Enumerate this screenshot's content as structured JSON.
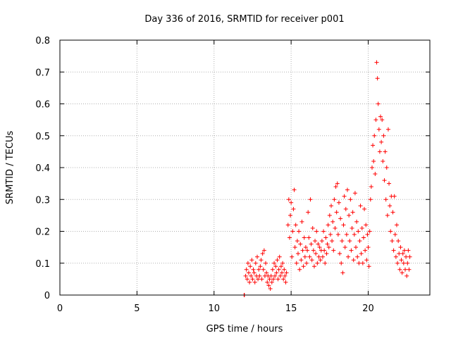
{
  "chart_data": {
    "type": "scatter",
    "title": "Day 336 of 2016, SRMTID for receiver p001",
    "xlabel": "GPS time / hours",
    "ylabel": "SRMTID / TECUs",
    "xlim": [
      0,
      24
    ],
    "ylim": [
      0,
      0.8
    ],
    "xticks": [
      0,
      5,
      10,
      15,
      20
    ],
    "xtick_labels": [
      "0",
      "5",
      "10",
      "15",
      "20"
    ],
    "yticks": [
      0,
      0.1,
      0.2,
      0.3,
      0.4,
      0.5,
      0.6,
      0.7,
      0.8
    ],
    "ytick_labels": [
      "0",
      "0.1",
      "0.2",
      "0.3",
      "0.4",
      "0.5",
      "0.6",
      "0.7",
      "0.8"
    ],
    "grid": true,
    "marker": "plus",
    "color": "#ff0000",
    "series": [
      {
        "name": "SRMTID",
        "points": [
          [
            11.95,
            0.0
          ],
          [
            11.97,
            0.0
          ],
          [
            12.05,
            0.06
          ],
          [
            12.1,
            0.08
          ],
          [
            12.15,
            0.05
          ],
          [
            12.2,
            0.1
          ],
          [
            12.25,
            0.07
          ],
          [
            12.3,
            0.04
          ],
          [
            12.35,
            0.09
          ],
          [
            12.4,
            0.06
          ],
          [
            12.45,
            0.11
          ],
          [
            12.5,
            0.05
          ],
          [
            12.55,
            0.08
          ],
          [
            12.6,
            0.07
          ],
          [
            12.65,
            0.04
          ],
          [
            12.7,
            0.1
          ],
          [
            12.75,
            0.06
          ],
          [
            12.8,
            0.12
          ],
          [
            12.85,
            0.05
          ],
          [
            12.9,
            0.08
          ],
          [
            12.95,
            0.06
          ],
          [
            13.0,
            0.09
          ],
          [
            13.05,
            0.11
          ],
          [
            13.1,
            0.05
          ],
          [
            13.15,
            0.13
          ],
          [
            13.2,
            0.08
          ],
          [
            13.25,
            0.14
          ],
          [
            13.3,
            0.06
          ],
          [
            13.35,
            0.1
          ],
          [
            13.4,
            0.07
          ],
          [
            13.45,
            0.04
          ],
          [
            13.5,
            0.06
          ],
          [
            13.55,
            0.03
          ],
          [
            13.6,
            0.05
          ],
          [
            13.65,
            0.02
          ],
          [
            13.7,
            0.06
          ],
          [
            13.75,
            0.04
          ],
          [
            13.8,
            0.08
          ],
          [
            13.85,
            0.05
          ],
          [
            13.9,
            0.1
          ],
          [
            13.95,
            0.06
          ],
          [
            14.0,
            0.09
          ],
          [
            14.05,
            0.07
          ],
          [
            14.1,
            0.11
          ],
          [
            14.15,
            0.05
          ],
          [
            14.2,
            0.08
          ],
          [
            14.25,
            0.12
          ],
          [
            14.3,
            0.06
          ],
          [
            14.35,
            0.09
          ],
          [
            14.4,
            0.07
          ],
          [
            14.45,
            0.1
          ],
          [
            14.5,
            0.05
          ],
          [
            14.55,
            0.08
          ],
          [
            14.6,
            0.06
          ],
          [
            14.65,
            0.04
          ],
          [
            14.7,
            0.07
          ],
          [
            14.8,
            0.22
          ],
          [
            14.85,
            0.3
          ],
          [
            14.9,
            0.18
          ],
          [
            14.95,
            0.25
          ],
          [
            15.0,
            0.29
          ],
          [
            15.05,
            0.12
          ],
          [
            15.1,
            0.2
          ],
          [
            15.15,
            0.27
          ],
          [
            15.2,
            0.33
          ],
          [
            15.25,
            0.15
          ],
          [
            15.3,
            0.22
          ],
          [
            15.35,
            0.1
          ],
          [
            15.4,
            0.17
          ],
          [
            15.45,
            0.13
          ],
          [
            15.5,
            0.2
          ],
          [
            15.55,
            0.08
          ],
          [
            15.6,
            0.16
          ],
          [
            15.65,
            0.11
          ],
          [
            15.7,
            0.23
          ],
          [
            15.75,
            0.14
          ],
          [
            15.8,
            0.09
          ],
          [
            15.85,
            0.18
          ],
          [
            15.9,
            0.12
          ],
          [
            15.95,
            0.15
          ],
          [
            16.0,
            0.1
          ],
          [
            16.05,
            0.14
          ],
          [
            16.1,
            0.26
          ],
          [
            16.15,
            0.18
          ],
          [
            16.2,
            0.12
          ],
          [
            16.25,
            0.3
          ],
          [
            16.3,
            0.16
          ],
          [
            16.35,
            0.11
          ],
          [
            16.4,
            0.21
          ],
          [
            16.45,
            0.14
          ],
          [
            16.5,
            0.09
          ],
          [
            16.55,
            0.17
          ],
          [
            16.6,
            0.13
          ],
          [
            16.65,
            0.2
          ],
          [
            16.7,
            0.1
          ],
          [
            16.75,
            0.16
          ],
          [
            16.8,
            0.12
          ],
          [
            16.85,
            0.15
          ],
          [
            16.9,
            0.11
          ],
          [
            16.95,
            0.14
          ],
          [
            17.0,
            0.17
          ],
          [
            17.05,
            0.12
          ],
          [
            17.1,
            0.2
          ],
          [
            17.15,
            0.14
          ],
          [
            17.2,
            0.1
          ],
          [
            17.25,
            0.18
          ],
          [
            17.3,
            0.13
          ],
          [
            17.35,
            0.16
          ],
          [
            17.4,
            0.22
          ],
          [
            17.45,
            0.15
          ],
          [
            17.5,
            0.25
          ],
          [
            17.55,
            0.19
          ],
          [
            17.6,
            0.28
          ],
          [
            17.65,
            0.17
          ],
          [
            17.7,
            0.23
          ],
          [
            17.75,
            0.14
          ],
          [
            17.8,
            0.3
          ],
          [
            17.85,
            0.21
          ],
          [
            17.9,
            0.34
          ],
          [
            17.95,
            0.26
          ],
          [
            18.0,
            0.35
          ],
          [
            18.05,
            0.19
          ],
          [
            18.1,
            0.29
          ],
          [
            18.15,
            0.13
          ],
          [
            18.2,
            0.24
          ],
          [
            18.25,
            0.1
          ],
          [
            18.3,
            0.17
          ],
          [
            18.35,
            0.07
          ],
          [
            18.4,
            0.22
          ],
          [
            18.45,
            0.31
          ],
          [
            18.5,
            0.15
          ],
          [
            18.55,
            0.27
          ],
          [
            18.6,
            0.19
          ],
          [
            18.65,
            0.33
          ],
          [
            18.7,
            0.12
          ],
          [
            18.75,
            0.25
          ],
          [
            18.8,
            0.17
          ],
          [
            18.85,
            0.3
          ],
          [
            18.9,
            0.14
          ],
          [
            18.95,
            0.21
          ],
          [
            19.0,
            0.26
          ],
          [
            19.05,
            0.11
          ],
          [
            19.1,
            0.19
          ],
          [
            19.15,
            0.32
          ],
          [
            19.2,
            0.15
          ],
          [
            19.25,
            0.23
          ],
          [
            19.3,
            0.12
          ],
          [
            19.35,
            0.2
          ],
          [
            19.4,
            0.1
          ],
          [
            19.45,
            0.17
          ],
          [
            19.5,
            0.28
          ],
          [
            19.55,
            0.13
          ],
          [
            19.6,
            0.21
          ],
          [
            19.65,
            0.1
          ],
          [
            19.7,
            0.18
          ],
          [
            19.75,
            0.27
          ],
          [
            19.8,
            0.14
          ],
          [
            19.85,
            0.22
          ],
          [
            19.9,
            0.11
          ],
          [
            19.95,
            0.19
          ],
          [
            20.0,
            0.15
          ],
          [
            20.05,
            0.09
          ],
          [
            20.1,
            0.2
          ],
          [
            20.15,
            0.3
          ],
          [
            20.2,
            0.34
          ],
          [
            20.25,
            0.4
          ],
          [
            20.3,
            0.47
          ],
          [
            20.35,
            0.42
          ],
          [
            20.4,
            0.5
          ],
          [
            20.45,
            0.38
          ],
          [
            20.5,
            0.55
          ],
          [
            20.55,
            0.73
          ],
          [
            20.6,
            0.68
          ],
          [
            20.65,
            0.6
          ],
          [
            20.7,
            0.52
          ],
          [
            20.75,
            0.45
          ],
          [
            20.8,
            0.56
          ],
          [
            20.85,
            0.48
          ],
          [
            20.9,
            0.55
          ],
          [
            20.95,
            0.42
          ],
          [
            21.0,
            0.5
          ],
          [
            21.05,
            0.36
          ],
          [
            21.1,
            0.45
          ],
          [
            21.15,
            0.3
          ],
          [
            21.2,
            0.4
          ],
          [
            21.25,
            0.25
          ],
          [
            21.3,
            0.52
          ],
          [
            21.35,
            0.35
          ],
          [
            21.4,
            0.28
          ],
          [
            21.45,
            0.2
          ],
          [
            21.5,
            0.31
          ],
          [
            21.55,
            0.17
          ],
          [
            21.6,
            0.26
          ],
          [
            21.65,
            0.14
          ],
          [
            21.7,
            0.31
          ],
          [
            21.75,
            0.19
          ],
          [
            21.8,
            0.12
          ],
          [
            21.85,
            0.22
          ],
          [
            21.9,
            0.1
          ],
          [
            21.95,
            0.17
          ],
          [
            22.0,
            0.13
          ],
          [
            22.05,
            0.08
          ],
          [
            22.1,
            0.15
          ],
          [
            22.15,
            0.11
          ],
          [
            22.2,
            0.07
          ],
          [
            22.25,
            0.13
          ],
          [
            22.3,
            0.1
          ],
          [
            22.35,
            0.14
          ],
          [
            22.4,
            0.08
          ],
          [
            22.45,
            0.12
          ],
          [
            22.5,
            0.06
          ],
          [
            22.55,
            0.1
          ],
          [
            22.6,
            0.14
          ],
          [
            22.65,
            0.08
          ],
          [
            22.7,
            0.12
          ]
        ]
      }
    ]
  }
}
